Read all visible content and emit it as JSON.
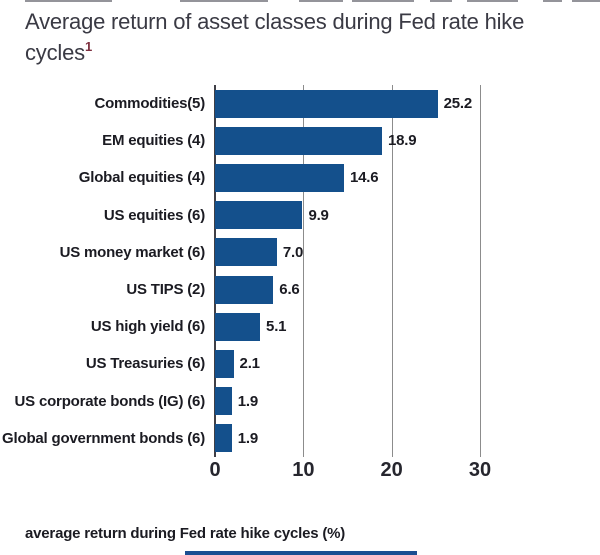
{
  "title": {
    "line1": "Average return of asset classes during Fed rate hike",
    "line2": "cycles",
    "superscript": "1"
  },
  "chart_data": {
    "type": "bar",
    "orientation": "horizontal",
    "categories": [
      "Commodities(5)",
      "EM equities (4)",
      "Global equities (4)",
      "US equities (6)",
      "US money market (6)",
      "US TIPS (2)",
      "US high yield (6)",
      "US Treasuries (6)",
      "US corporate bonds (IG) (6)",
      "Global government bonds (6)"
    ],
    "values": [
      25.2,
      18.9,
      14.6,
      9.9,
      7.0,
      6.6,
      5.1,
      2.1,
      1.9,
      1.9
    ],
    "value_labels": [
      "25.2",
      "18.9",
      "14.6",
      "9.9",
      "7.0",
      "6.6",
      "5.1",
      "2.1",
      "1.9",
      "1.9"
    ],
    "x_ticks": [
      0,
      10,
      20,
      30
    ],
    "x_tick_labels": [
      "0",
      "10",
      "20",
      "30"
    ],
    "xlim": [
      0,
      30
    ],
    "xlabel": "average return during Fed rate hike cycles (%)",
    "grid": true,
    "legend_position": "none",
    "bar_color": "#14508c",
    "gridline_color": "#8c8c8c",
    "axis_line_color": "#3f3f46",
    "value_label_color": "#1b1b22",
    "title_color": "#3a3a44",
    "footnote_color": "#7d2f3f"
  }
}
